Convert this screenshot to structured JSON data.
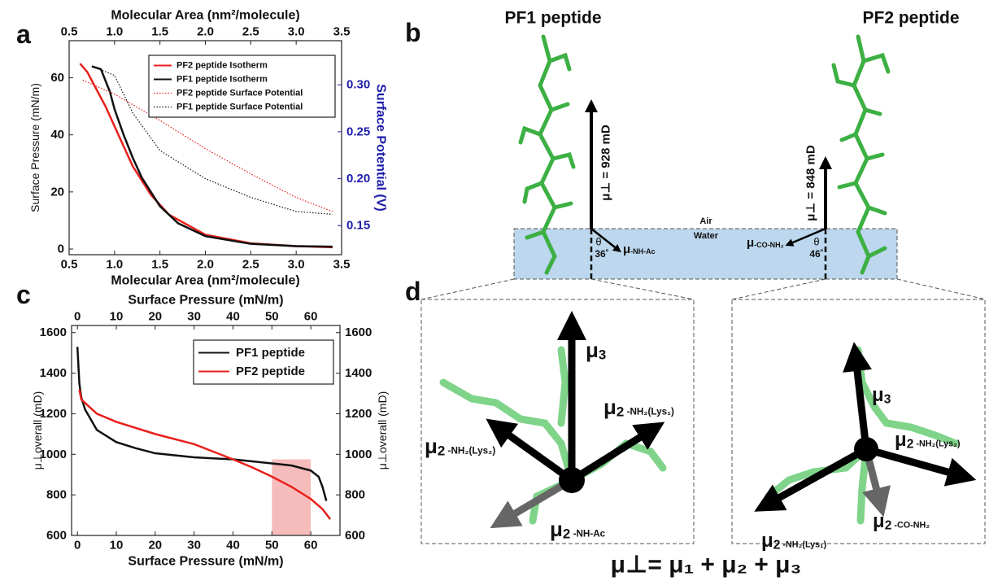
{
  "panels": [
    "a",
    "b",
    "c",
    "d"
  ],
  "chart_data": [
    {
      "type": "line",
      "xlabel": "Molecular Area (nm²/molecule)",
      "ylabel": "Surface Pressure (mN/m)",
      "y2label": "Surface Potential (V)",
      "xlim": [
        0.5,
        3.5
      ],
      "ylim": [
        -2,
        73
      ],
      "y2lim": [
        0.119,
        0.347
      ],
      "xticks": [
        {
          "value": 0.5,
          "label": "0.5"
        },
        {
          "value": 1,
          "label": "1.0"
        },
        {
          "value": 1.5,
          "label": "1.5"
        },
        {
          "value": 2,
          "label": "2.0"
        },
        {
          "value": 2.5,
          "label": "2.5"
        },
        {
          "value": 3,
          "label": "3.0"
        },
        {
          "value": 3.5,
          "label": "3.5"
        }
      ],
      "yticks": [
        0,
        20,
        40,
        60
      ],
      "y2ticks": [
        0.15,
        {
          "value": 0.2,
          "label": "0.20"
        },
        0.25,
        {
          "value": 0.3,
          "label": "0.30"
        }
      ],
      "y2_color": "#1c1caa",
      "mirror_x": true,
      "legend": "upper right",
      "series": [
        {
          "name": "PF2 peptide Isotherm",
          "color": "#e8201c",
          "style": "solid",
          "x": [
            0.62,
            0.7,
            0.8,
            0.9,
            1.0,
            1.1,
            1.2,
            1.4,
            1.6,
            2.0,
            2.5,
            3.0,
            3.4
          ],
          "values": [
            65,
            62,
            56,
            50,
            43,
            36,
            29,
            19,
            12,
            5,
            2,
            1,
            0.6
          ]
        },
        {
          "name": "PF1 peptide Isotherm",
          "color": "#111111",
          "style": "solid",
          "x": [
            0.75,
            0.85,
            0.95,
            1.0,
            1.1,
            1.2,
            1.3,
            1.5,
            1.7,
            2.0,
            2.5,
            3.0,
            3.4
          ],
          "values": [
            64,
            63,
            55,
            49,
            40,
            32,
            25,
            15,
            9,
            4.5,
            1.8,
            1,
            0.8
          ]
        },
        {
          "name": "PF2 peptide Surface Potential",
          "color": "#e8201c",
          "style": "dotted",
          "axis": "y2",
          "x": [
            0.65,
            1.0,
            1.5,
            2.0,
            2.5,
            3.0,
            3.4
          ],
          "values": [
            0.305,
            0.29,
            0.262,
            0.232,
            0.205,
            0.18,
            0.165
          ]
        },
        {
          "name": "PF1 peptide Surface Potential",
          "color": "#111111",
          "style": "dotted",
          "axis": "y2",
          "x": [
            0.75,
            1.0,
            1.2,
            1.5,
            2.0,
            2.5,
            3.0,
            3.4
          ],
          "values": [
            0.32,
            0.31,
            0.27,
            0.23,
            0.2,
            0.18,
            0.165,
            0.162
          ]
        }
      ]
    },
    {
      "type": "line",
      "xlabel": "Surface Pressure (mN/m)",
      "ylabel": "μ⊥overall (mD)",
      "xlim": [
        -1.5,
        67.5
      ],
      "ylim": [
        600,
        1635
      ],
      "xticks": [
        0,
        10,
        20,
        30,
        40,
        50,
        60
      ],
      "yticks": [
        600,
        800,
        1000,
        1200,
        1400,
        1600
      ],
      "mirror_x": true,
      "mirror_y": true,
      "legend": "upper right",
      "highlight": {
        "x": [
          50,
          60
        ],
        "y": [
          600,
          975
        ],
        "color": "#f6bcbc"
      },
      "series": [
        {
          "name": "PF1 peptide",
          "color": "#111111",
          "style": "solid",
          "x": [
            0,
            0.5,
            1,
            2,
            5,
            10,
            15,
            20,
            30,
            40,
            50,
            55,
            60,
            62,
            63,
            64
          ],
          "values": [
            1530,
            1350,
            1280,
            1220,
            1120,
            1060,
            1030,
            1005,
            985,
            975,
            955,
            945,
            920,
            890,
            840,
            770
          ]
        },
        {
          "name": "PF2 peptide",
          "color": "#e8201c",
          "style": "solid",
          "x": [
            0.5,
            1,
            5,
            10,
            20,
            30,
            40,
            45,
            50,
            55,
            60,
            63,
            65
          ],
          "values": [
            1320,
            1270,
            1200,
            1160,
            1100,
            1050,
            975,
            935,
            890,
            840,
            780,
            730,
            680
          ]
        }
      ]
    }
  ],
  "panel_b": {
    "pf1_title": "PF1 peptide",
    "pf2_title": "PF2 peptide",
    "pf1_dipole": "μ⊥ = 928 mD",
    "pf2_dipole": "μ⊥ = 848 mD",
    "air": "Air",
    "water": "Water",
    "theta": "θ",
    "pf1_angle": "36˚",
    "pf2_angle": "46˚",
    "pf1_group": {
      "main": "μ",
      "sub": "-NH-Ac"
    },
    "pf2_group": {
      "main": "μ",
      "sub": "-CO-NH₂"
    }
  },
  "panel_d": {
    "left": [
      {
        "main": "μ",
        "index": "3",
        "sub": ""
      },
      {
        "main": "μ",
        "index": "2",
        "sub": " -NH₂(Lys₁)"
      },
      {
        "main": "μ",
        "index": "2",
        "sub": " -NH₂(Lys₂)"
      },
      {
        "main": "μ",
        "index": "2",
        "sub": " -NH-Ac"
      }
    ],
    "right": [
      {
        "main": "μ",
        "index": "3",
        "sub": ""
      },
      {
        "main": "μ",
        "index": "2",
        "sub": " -NH₂(Lys₂)"
      },
      {
        "main": "μ",
        "index": "2",
        "sub": " -NH₂(Lys₁)"
      },
      {
        "main": "μ",
        "index": "2",
        "sub": " -CO-NH₂"
      }
    ],
    "equation": "μ⊥= μ₁ + μ₂ + μ₃"
  }
}
